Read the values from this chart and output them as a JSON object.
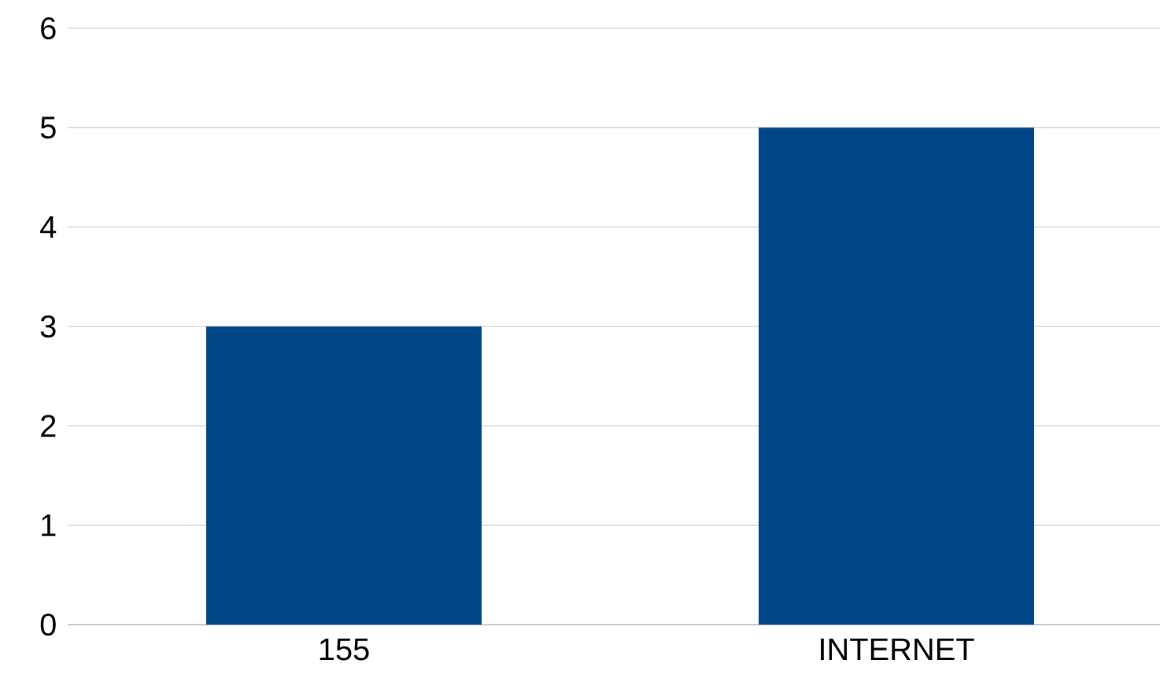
{
  "chart_data": {
    "type": "bar",
    "categories": [
      "155",
      "INTERNET"
    ],
    "values": [
      3,
      5
    ],
    "color": "#004586",
    "ylim": [
      0,
      6
    ],
    "yticks": [
      0,
      1,
      2,
      3,
      4,
      5,
      6
    ],
    "grid": "y"
  }
}
